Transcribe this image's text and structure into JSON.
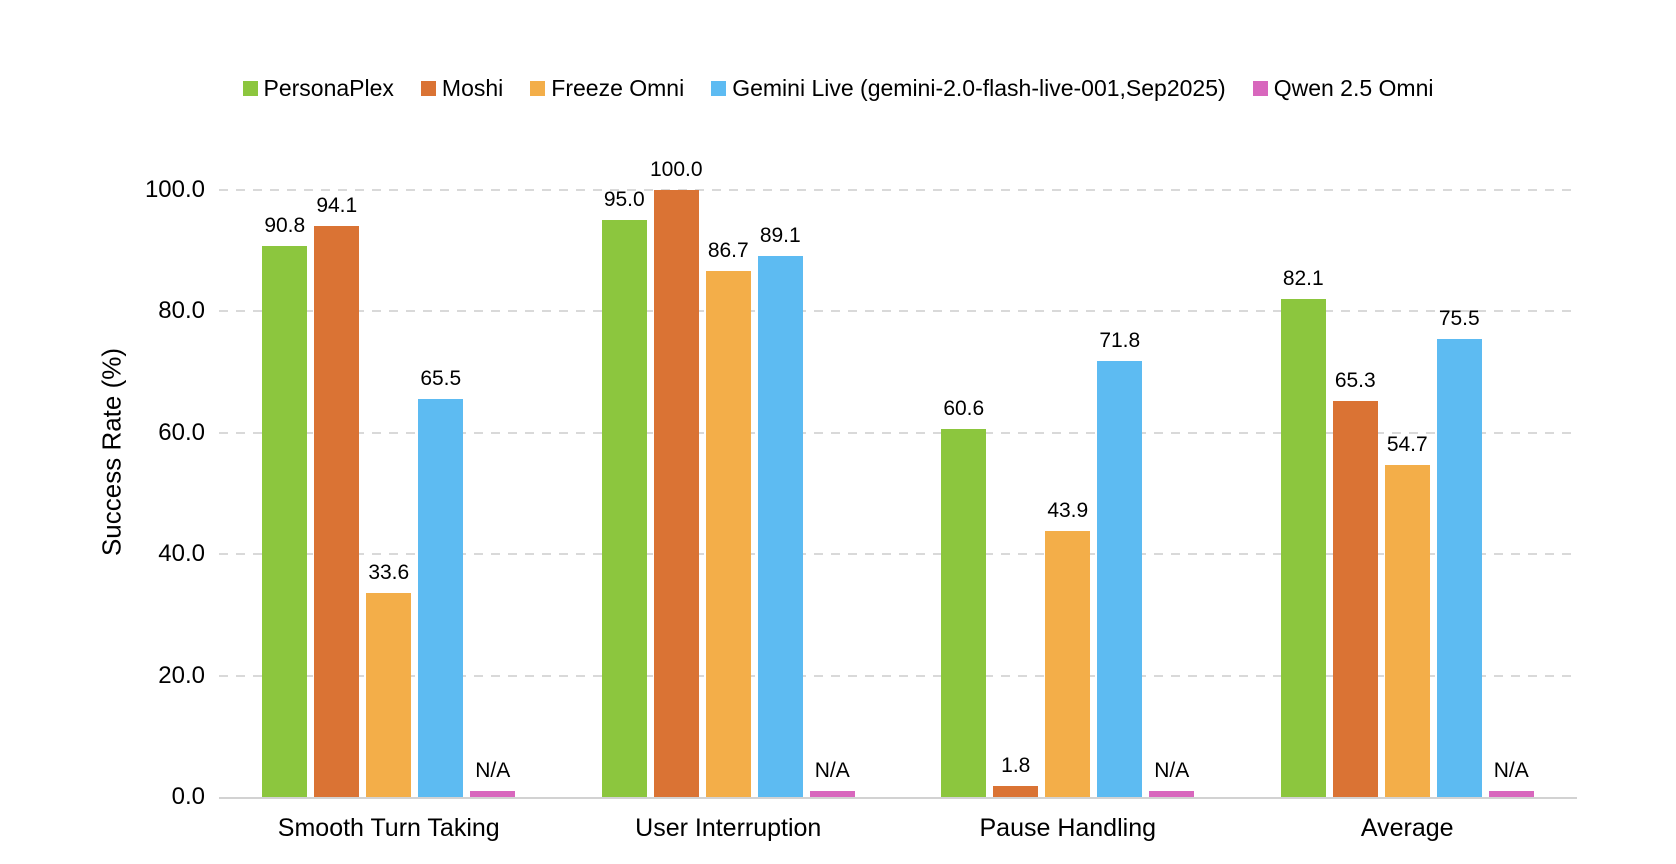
{
  "chart_data": {
    "type": "bar",
    "title": "",
    "ylabel": "Success Rate (%)",
    "categories": [
      "Smooth Turn Taking",
      "User Interruption",
      "Pause Handling",
      "Average"
    ],
    "series": [
      {
        "name": "PersonaPlex",
        "color": "#8cc63e",
        "values": [
          90.8,
          95.0,
          60.6,
          82.1
        ],
        "labels": [
          "90.8",
          "95.0",
          "60.6",
          "82.1"
        ]
      },
      {
        "name": "Moshi",
        "color": "#da7334",
        "values": [
          94.1,
          100.0,
          1.8,
          65.3
        ],
        "labels": [
          "94.1",
          "100.0",
          "1.8",
          "65.3"
        ]
      },
      {
        "name": "Freeze Omni",
        "color": "#f3ae49",
        "values": [
          33.6,
          86.7,
          43.9,
          54.7
        ],
        "labels": [
          "33.6",
          "86.7",
          "43.9",
          "54.7"
        ]
      },
      {
        "name": "Gemini Live (gemini-2.0-flash-live-001,Sep2025)",
        "color": "#5dbbf2",
        "values": [
          65.5,
          89.1,
          71.8,
          75.5
        ],
        "labels": [
          "65.5",
          "89.1",
          "71.8",
          "75.5"
        ]
      },
      {
        "name": "Qwen 2.5 Omni",
        "color": "#d867bd",
        "values": [
          null,
          null,
          null,
          null
        ],
        "labels": [
          "N/A",
          "N/A",
          "N/A",
          "N/A"
        ]
      }
    ],
    "na_bar_value": 1.0,
    "ylim": [
      0,
      100
    ],
    "yticks": [
      {
        "value": 0,
        "label": "0.0"
      },
      {
        "value": 20,
        "label": "20.0"
      },
      {
        "value": 40,
        "label": "40.0"
      },
      {
        "value": 60,
        "label": "60.0"
      },
      {
        "value": 80,
        "label": "80.0"
      },
      {
        "value": 100,
        "label": "100.0"
      }
    ],
    "grid": {
      "axis": "y",
      "style": "dashed",
      "color": "#d9d9d9"
    },
    "legend_position": "top",
    "background": "#ffffff",
    "text_color": "#000000"
  }
}
